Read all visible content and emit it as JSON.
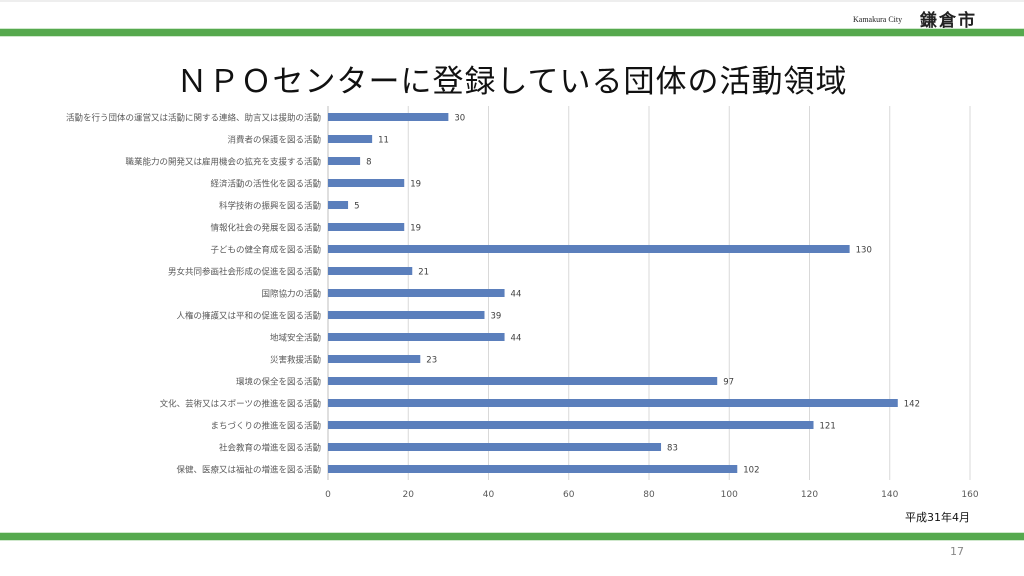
{
  "header": {
    "city_en": "Kamakura City",
    "city_jp": "鎌倉市"
  },
  "title": "ＮＰＯセンターに登録している団体の活動領域",
  "date_note": "平成31年4月",
  "page_number": "17",
  "colors": {
    "bar": "#5b7fbc",
    "accent_green": "#56a94e",
    "grid": "#d9d9d9"
  },
  "chart_data": {
    "type": "bar",
    "orientation": "horizontal",
    "categories": [
      "活動を行う団体の運営又は活動に関する連絡、助言又は援助の活動",
      "消費者の保護を図る活動",
      "職業能力の開発又は雇用機会の拡充を支援する活動",
      "経済活動の活性化を図る活動",
      "科学技術の振興を図る活動",
      "情報化社会の発展を図る活動",
      "子どもの健全育成を図る活動",
      "男女共同参画社会形成の促進を図る活動",
      "国際協力の活動",
      "人権の擁護又は平和の促進を図る活動",
      "地域安全活動",
      "災害救援活動",
      "環境の保全を図る活動",
      "文化、芸術又はスポーツの推進を図る活動",
      "まちづくりの推進を図る活動",
      "社会教育の増進を図る活動",
      "保健、医療又は福祉の増進を図る活動"
    ],
    "values": [
      30,
      11,
      8,
      19,
      5,
      19,
      130,
      21,
      44,
      39,
      44,
      23,
      97,
      142,
      121,
      83,
      102
    ],
    "xlim": [
      0,
      160
    ],
    "xticks": [
      0,
      20,
      40,
      60,
      80,
      100,
      120,
      140,
      160
    ],
    "grid": true,
    "data_labels": true
  }
}
